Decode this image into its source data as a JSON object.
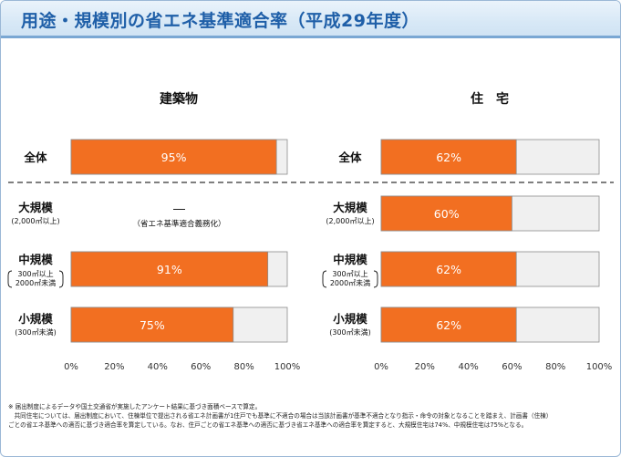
{
  "page": {
    "title": "用途・規模別の省エネ基準適合率（平成29年度）",
    "footnote": [
      "※ 届出制度によるデータや国土交通省が実施したアンケート結果に基づき面積ベースで算定。",
      "　共同住宅については、届出制度において、住棟単位で提出される省エネ計画書が1住戸でも基準に不適合の場合は当該計画書が基準不適合となり指示・命令の対象となることを踏まえ、計画書（住棟）",
      "ごとの省エネ基準への適否に基づき適合率を算定している。なお、住戸ごとの省エネ基準への適否に基づき省エネ基準への適合率を算定すると、大規模住宅は74%、中規模住宅は75%となる。"
    ]
  },
  "chart_data": [
    {
      "type": "bar",
      "orientation": "horizontal",
      "stacked_to_100": true,
      "title": "建築物",
      "categories": [
        {
          "label": "全体",
          "sub": ""
        },
        {
          "label": "大規模",
          "sub": "(2,000㎡以上)"
        },
        {
          "label": "中規模",
          "sub": "300㎡以上 2000㎡未満"
        },
        {
          "label": "小規模",
          "sub": "(300㎡未満)"
        }
      ],
      "values": [
        95,
        null,
        91,
        75
      ],
      "value_labels": [
        "95%",
        null,
        "91%",
        "75%"
      ],
      "missing_note": {
        "index": 1,
        "dash": "―",
        "text": "（省エネ基準適合義務化）"
      },
      "xlim": [
        0,
        100
      ],
      "xticks": [
        "0%",
        "20%",
        "40%",
        "60%",
        "80%",
        "100%"
      ],
      "colors": {
        "value": "#f26f21",
        "remainder": "#f0f0f0"
      }
    },
    {
      "type": "bar",
      "orientation": "horizontal",
      "stacked_to_100": true,
      "title": "住　宅",
      "categories": [
        {
          "label": "全体",
          "sub": ""
        },
        {
          "label": "大規模",
          "sub": "(2,000㎡以上)"
        },
        {
          "label": "中規模",
          "sub": "300㎡以上 2000㎡未満"
        },
        {
          "label": "小規模",
          "sub": "(300㎡未満)"
        }
      ],
      "values": [
        62,
        60,
        62,
        62
      ],
      "value_labels": [
        "62%",
        "60%",
        "62%",
        "62%"
      ],
      "xlim": [
        0,
        100
      ],
      "xticks": [
        "0%",
        "20%",
        "40%",
        "60%",
        "80%",
        "100%"
      ],
      "colors": {
        "value": "#f26f21",
        "remainder": "#f0f0f0"
      }
    }
  ]
}
